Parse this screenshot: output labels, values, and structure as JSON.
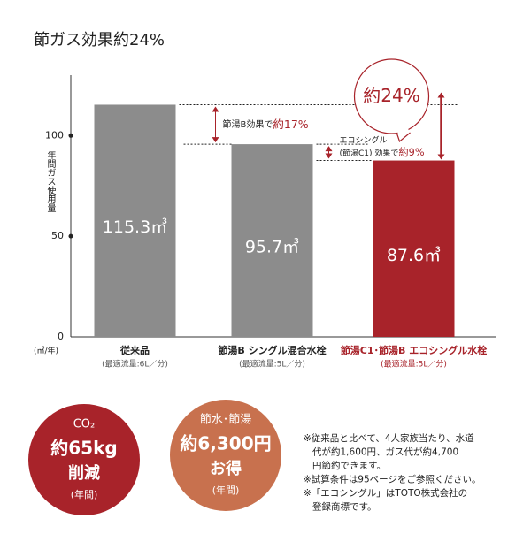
{
  "chart_data": {
    "type": "bar",
    "title": "節ガス効果約24%",
    "ylabel": "年間ガス使用量",
    "yunit": "(㎥/年)",
    "categories": [
      "従来品",
      "節湯B シングル混合水栓",
      "節湯C1･節湯B エコシングル水栓"
    ],
    "subcategories": [
      "(最適流量:6L／分)",
      "(最適流量:5L／分)",
      "(最適流量:5L／分)"
    ],
    "values": [
      115.3,
      95.7,
      87.6
    ],
    "value_labels": [
      "115.3㎥",
      "95.7㎥",
      "87.6㎥"
    ],
    "colors": [
      "#8c8c8c",
      "#8c8c8c",
      "#a8232a"
    ],
    "category_colors": [
      "#222222",
      "#222222",
      "#a8232a"
    ],
    "ylim": [
      0,
      130
    ],
    "yticks": [
      0,
      50,
      100
    ],
    "annotations": [
      {
        "text": "節湯B効果で",
        "highlight": "約17%"
      },
      {
        "text": "エコシングル",
        "text2": "(節湯C1) 効果で",
        "highlight": "約9%"
      },
      {
        "highlight": "約24%"
      }
    ]
  },
  "badges": [
    {
      "lines": [
        "CO₂",
        "約65kg",
        "削減",
        "(年間)"
      ],
      "color": "#a8232a"
    },
    {
      "lines": [
        "節水･節湯",
        "約6,300円",
        "お得",
        "(年間)"
      ],
      "color": "#c8714e"
    }
  ],
  "notes": [
    "※従来品と比べて、4人家族当たり、水道",
    "代が約1,600円、ガス代が約4,700",
    "円節約できます。",
    "※試算条件は95ページをご参照ください。",
    "※「エコシングル」はTOTO株式会社の",
    "登録商標です。"
  ]
}
